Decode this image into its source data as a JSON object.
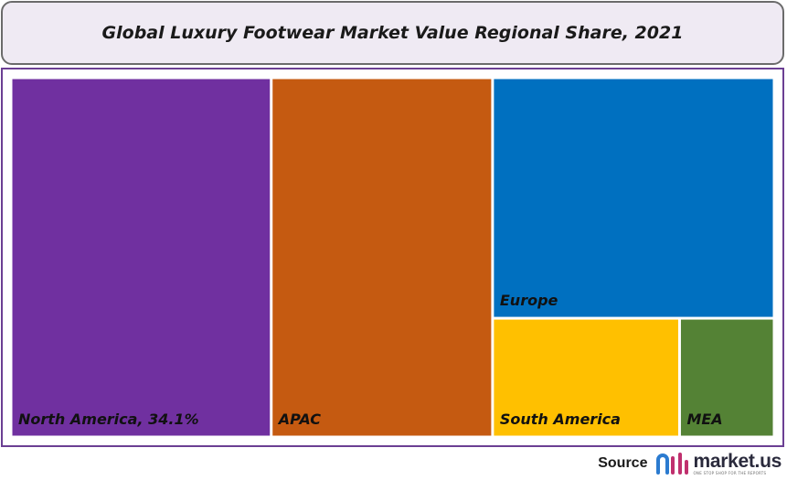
{
  "title": "Global Luxury Footwear Market Value Regional Share, 2021",
  "chart_data": {
    "type": "treemap",
    "title": "Global Luxury Footwear Market Value Regional Share, 2021",
    "unit": "%",
    "regions": [
      {
        "name": "North America",
        "label": "North America, 34.1%",
        "value": 34.1,
        "color": "#7030a0"
      },
      {
        "name": "APAC",
        "label": "APAC",
        "value": 29.0,
        "color": "#c55a11"
      },
      {
        "name": "Europe",
        "label": "Europe",
        "value": 24.7,
        "color": "#0070c0"
      },
      {
        "name": "South America",
        "label": "South America",
        "value": 8.1,
        "color": "#ffc000"
      },
      {
        "name": "MEA",
        "label": "MEA",
        "value": 4.1,
        "color": "#548235"
      }
    ]
  },
  "footer": {
    "source_label": "Source",
    "logo_text": "market.us",
    "logo_tagline": "ONE STOP SHOP FOR THE REPORTS",
    "logo_colors": [
      "#2b7bd0",
      "#c0306e"
    ]
  }
}
